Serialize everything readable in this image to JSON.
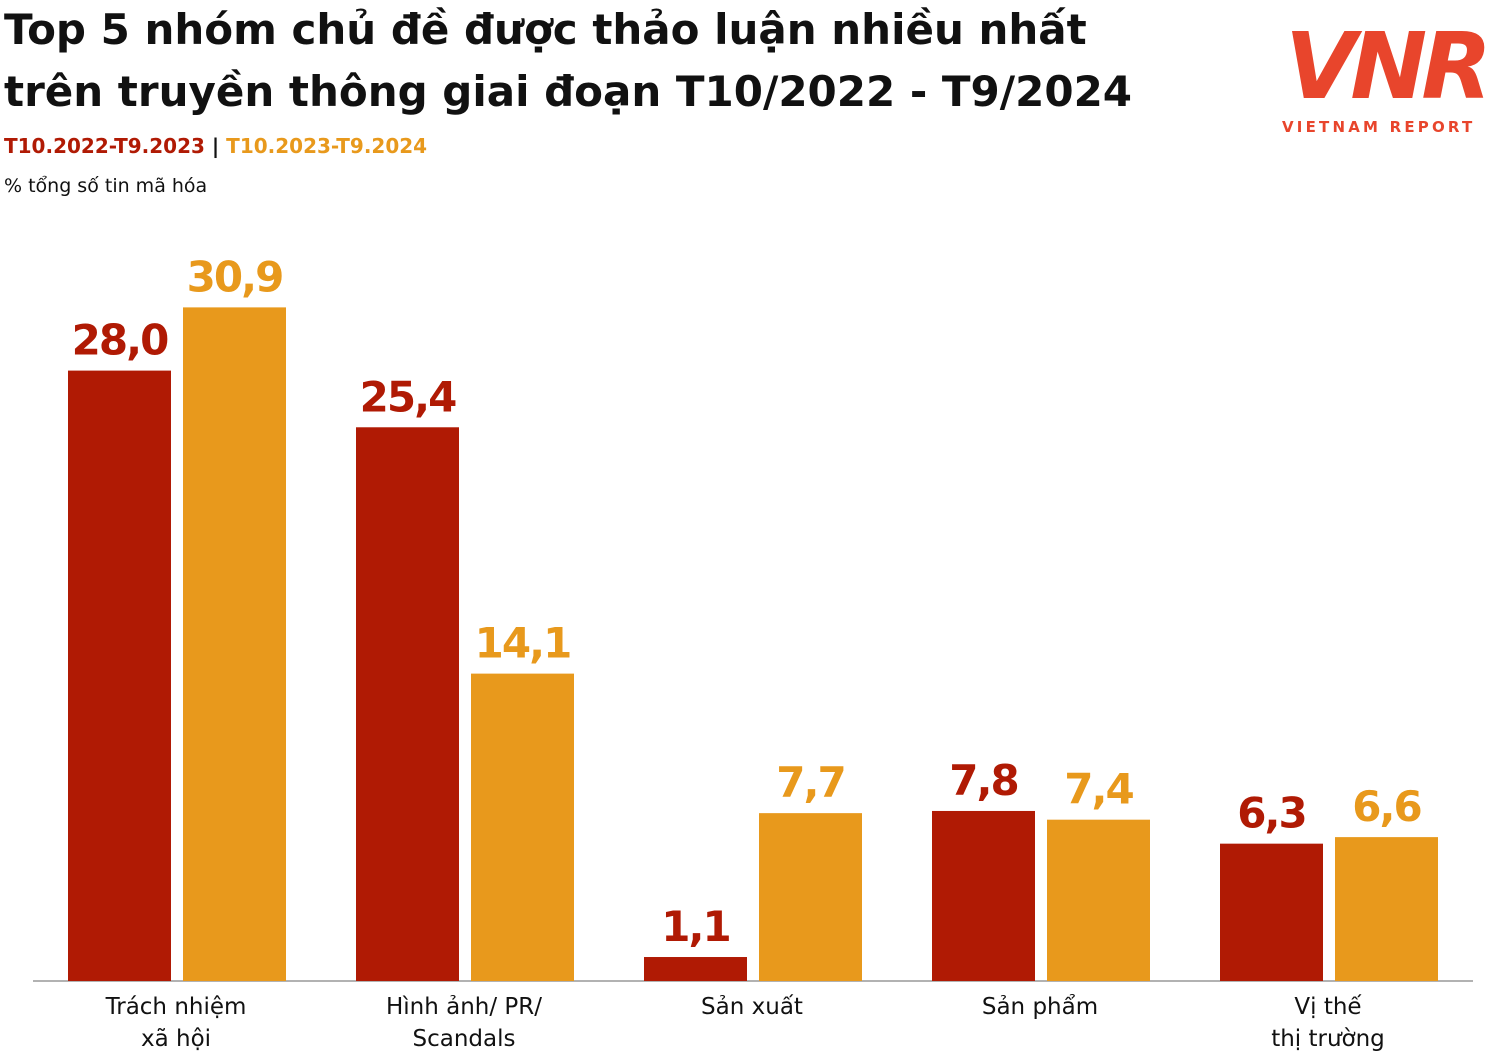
{
  "chart_data": {
    "type": "bar",
    "title": [
      "Top 5 nhóm chủ đề được thảo luận nhiều nhất",
      "trên truyền thông giai đoạn T10/2022 - T9/2024"
    ],
    "legend_separator": "|",
    "y_label": "% tổng số tin mã hóa",
    "categories": [
      [
        "Trách nhiệm",
        "xã hội"
      ],
      [
        "Hình ảnh/ PR/",
        "Scandals"
      ],
      [
        "Sản xuất"
      ],
      [
        "Sản phẩm"
      ],
      [
        "Vị thế",
        "thị trường"
      ]
    ],
    "series": [
      {
        "name": "T10.2022-T9.2023",
        "color": "#b01a04",
        "values": [
          28.0,
          25.4,
          1.1,
          7.8,
          6.3
        ],
        "value_labels": [
          "28,0",
          "25,4",
          "1,1",
          "7,8",
          "6,3"
        ]
      },
      {
        "name": "T10.2023-T9.2024",
        "color": "#e8991c",
        "values": [
          30.9,
          14.1,
          7.7,
          7.4,
          6.6
        ],
        "value_labels": [
          "30,9",
          "14,1",
          "7,7",
          "7,4",
          "6,6"
        ]
      }
    ],
    "ylim": [
      0,
      35
    ]
  },
  "logo": {
    "mark": "VNR",
    "text": "VIETNAM REPORT"
  }
}
